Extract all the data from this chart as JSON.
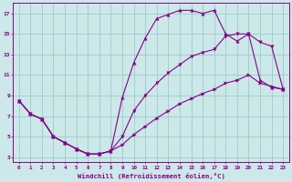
{
  "xlabel": "Windchill (Refroidissement éolien,°C)",
  "bg_color": "#cce8e8",
  "line_color": "#880088",
  "grid_color": "#99cccc",
  "xlim": [
    -0.5,
    23.5
  ],
  "ylim": [
    2.5,
    18
  ],
  "xticks": [
    0,
    1,
    2,
    3,
    4,
    5,
    6,
    7,
    8,
    9,
    10,
    11,
    12,
    13,
    14,
    15,
    16,
    17,
    18,
    19,
    20,
    21,
    22,
    23
  ],
  "yticks": [
    3,
    5,
    7,
    9,
    11,
    13,
    15,
    17
  ],
  "series1_x": [
    0,
    1,
    2,
    3,
    4,
    5,
    6,
    7,
    8,
    9,
    10,
    11,
    12,
    13,
    14,
    15,
    16,
    17,
    18,
    19,
    20,
    21,
    22,
    23
  ],
  "series1_y": [
    8.5,
    7.2,
    6.7,
    5.0,
    4.4,
    3.8,
    3.3,
    3.3,
    3.6,
    8.8,
    12.2,
    14.6,
    16.5,
    16.9,
    17.3,
    17.3,
    17.0,
    17.3,
    15.0,
    14.3,
    15.0,
    10.5,
    9.8,
    9.6
  ],
  "series2_x": [
    0,
    1,
    2,
    3,
    4,
    5,
    6,
    7,
    8,
    9,
    10,
    11,
    12,
    13,
    14,
    15,
    16,
    17,
    18,
    19,
    20,
    21,
    22,
    23
  ],
  "series2_y": [
    8.5,
    7.2,
    6.7,
    5.0,
    4.4,
    3.8,
    3.3,
    3.3,
    3.6,
    5.0,
    7.5,
    9.0,
    10.2,
    11.2,
    12.0,
    12.8,
    13.2,
    13.5,
    14.8,
    15.0,
    15.0,
    14.2,
    13.8,
    9.6
  ],
  "series3_x": [
    0,
    1,
    2,
    3,
    4,
    5,
    6,
    7,
    8,
    9,
    10,
    11,
    12,
    13,
    14,
    15,
    16,
    17,
    18,
    19,
    20,
    21,
    22,
    23
  ],
  "series3_y": [
    8.5,
    7.2,
    6.7,
    5.0,
    4.4,
    3.8,
    3.3,
    3.3,
    3.6,
    4.2,
    5.2,
    6.0,
    6.8,
    7.5,
    8.2,
    8.7,
    9.2,
    9.6,
    10.2,
    10.5,
    11.0,
    10.2,
    9.9,
    9.6
  ]
}
